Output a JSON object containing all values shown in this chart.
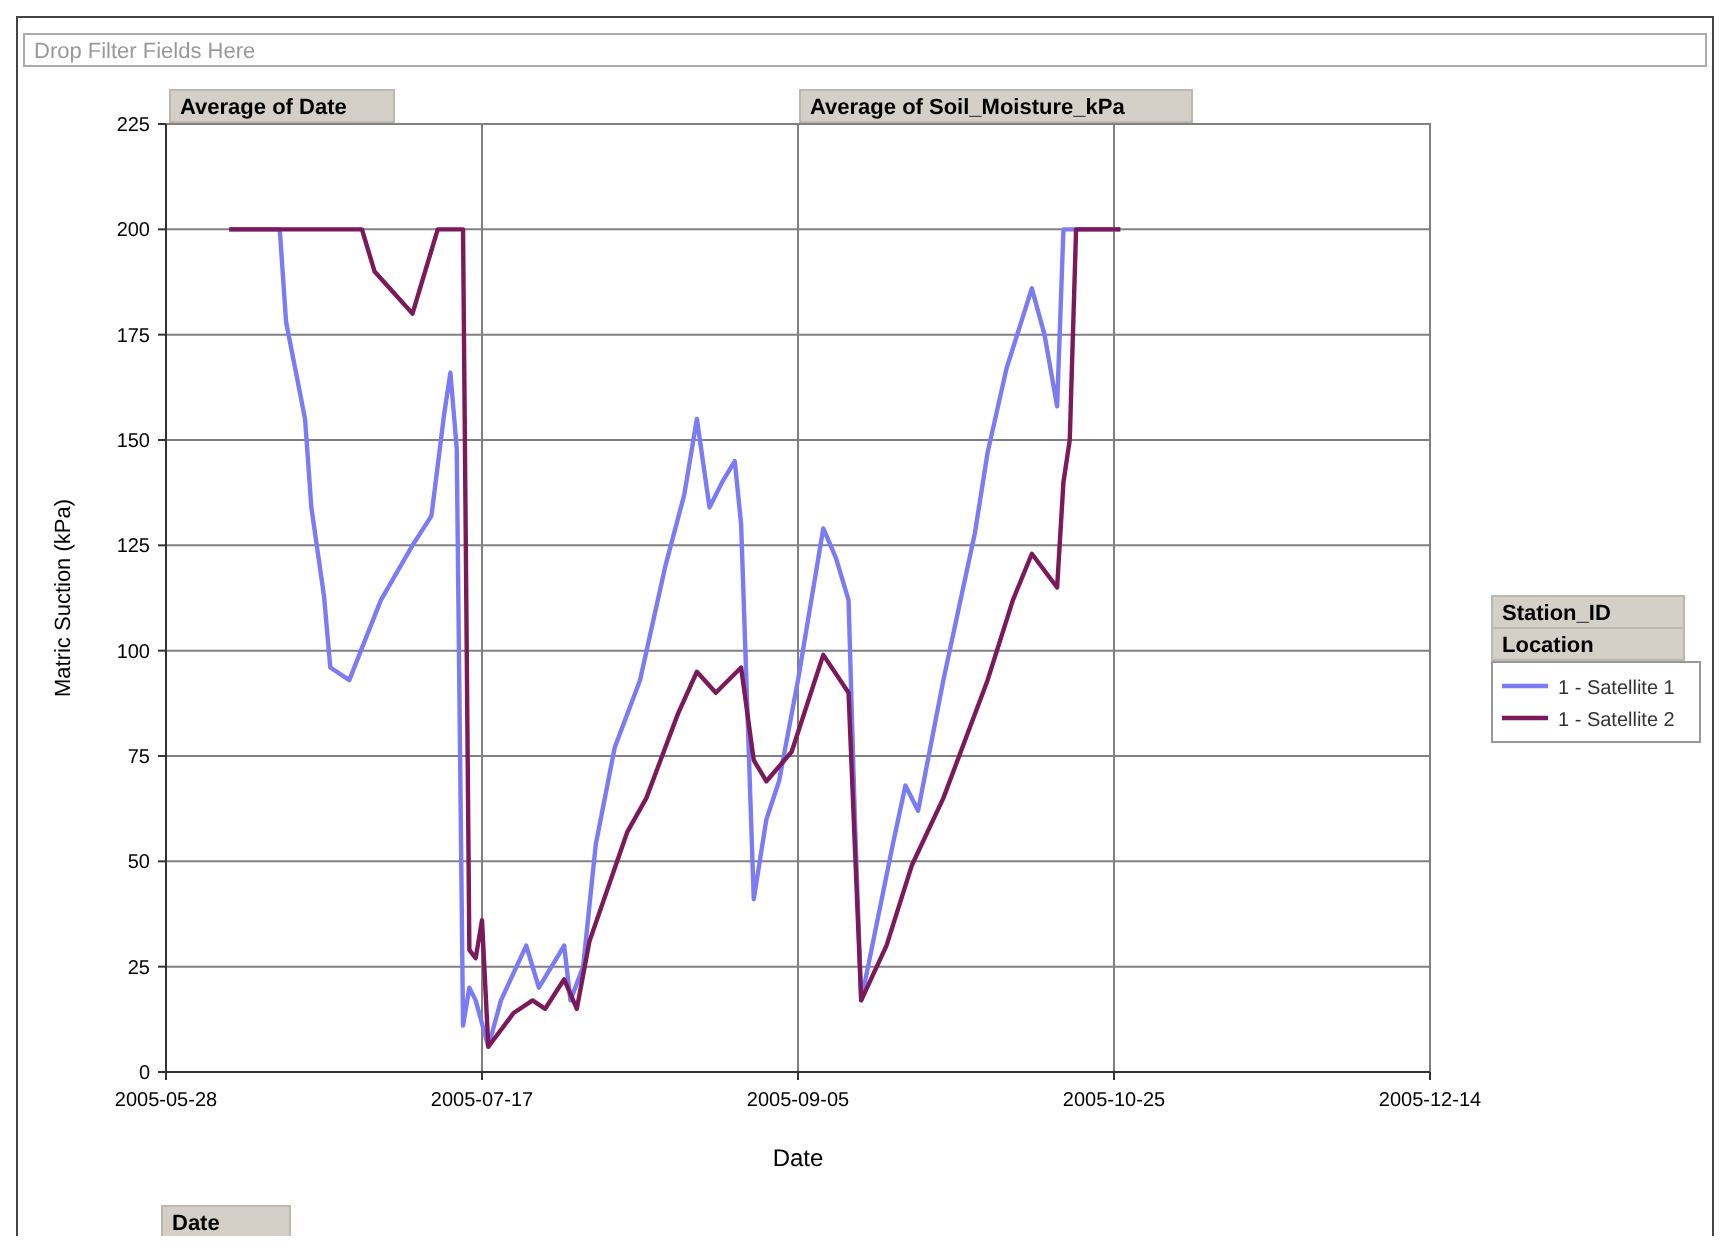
{
  "chart_data": {
    "type": "line",
    "xlabel": "Date",
    "ylabel": "Matric Suction (kPa)",
    "legend_title": "Station_ID",
    "annotations": [
      "Drop Filter Fields Here",
      "Average of Date",
      "Average of Soil_Moisture_kPa",
      "Location",
      "Date"
    ],
    "xlim": [
      "2005-05-28",
      "2005-12-14"
    ],
    "xticks": [
      "2005-05-28",
      "2005-07-17",
      "2005-09-05",
      "2005-10-25",
      "2005-12-14"
    ],
    "ylim": [
      0,
      225
    ],
    "yticks": [
      0,
      25,
      50,
      75,
      100,
      125,
      150,
      175,
      200,
      225
    ],
    "grid": true,
    "legend": "right",
    "line_style": "solid",
    "marker": "none",
    "series": [
      {
        "name": "1 - Satellite 1",
        "color": "#7b7bf5",
        "x": [
          "2005-06-07",
          "2005-06-15",
          "2005-06-16",
          "2005-06-19",
          "2005-06-20",
          "2005-06-22",
          "2005-06-23",
          "2005-06-26",
          "2005-07-01",
          "2005-07-06",
          "2005-07-09",
          "2005-07-11",
          "2005-07-12",
          "2005-07-13",
          "2005-07-14",
          "2005-07-15",
          "2005-07-16",
          "2005-07-18",
          "2005-07-20",
          "2005-07-24",
          "2005-07-26",
          "2005-07-28",
          "2005-07-30",
          "2005-07-31",
          "2005-08-02",
          "2005-08-04",
          "2005-08-07",
          "2005-08-11",
          "2005-08-15",
          "2005-08-18",
          "2005-08-20",
          "2005-08-22",
          "2005-08-24",
          "2005-08-26",
          "2005-08-27",
          "2005-08-29",
          "2005-08-31",
          "2005-09-02",
          "2005-09-05",
          "2005-09-09",
          "2005-09-11",
          "2005-09-13",
          "2005-09-14",
          "2005-09-15",
          "2005-09-20",
          "2005-09-22",
          "2005-09-24",
          "2005-09-28",
          "2005-10-03",
          "2005-10-05",
          "2005-10-08",
          "2005-10-12",
          "2005-10-14",
          "2005-10-16",
          "2005-10-17",
          "2005-10-26"
        ],
        "values": [
          200,
          200,
          178,
          155,
          134,
          113,
          96,
          93,
          112,
          125,
          132,
          156,
          166,
          148,
          11,
          20,
          17,
          6,
          17,
          30,
          20,
          25,
          30,
          17,
          25,
          54,
          77,
          93,
          120,
          137,
          155,
          134,
          140,
          145,
          130,
          41,
          60,
          69,
          93,
          129,
          122,
          112,
          60,
          17,
          54,
          68,
          62,
          93,
          128,
          147,
          167,
          186,
          175,
          158,
          200,
          200
        ]
      },
      {
        "name": "1 - Satellite 2",
        "color": "#7b1a5a",
        "x": [
          "2005-06-07",
          "2005-06-28",
          "2005-06-30",
          "2005-07-03",
          "2005-07-06",
          "2005-07-08",
          "2005-07-10",
          "2005-07-14",
          "2005-07-15",
          "2005-07-16",
          "2005-07-17",
          "2005-07-18",
          "2005-07-22",
          "2005-07-25",
          "2005-07-27",
          "2005-07-30",
          "2005-08-01",
          "2005-08-03",
          "2005-08-09",
          "2005-08-12",
          "2005-08-17",
          "2005-08-20",
          "2005-08-23",
          "2005-08-27",
          "2005-08-29",
          "2005-08-31",
          "2005-09-04",
          "2005-09-09",
          "2005-09-13",
          "2005-09-15",
          "2005-09-19",
          "2005-09-23",
          "2005-09-28",
          "2005-10-05",
          "2005-10-09",
          "2005-10-12",
          "2005-10-16",
          "2005-10-17",
          "2005-10-18",
          "2005-10-19",
          "2005-10-26"
        ],
        "values": [
          200,
          200,
          190,
          185,
          180,
          190,
          200,
          200,
          29,
          27,
          36,
          6,
          14,
          17,
          15,
          22,
          15,
          31,
          57,
          65,
          85,
          95,
          90,
          96,
          74,
          69,
          76,
          99,
          90,
          17,
          30,
          49,
          65,
          93,
          112,
          123,
          115,
          140,
          150,
          200,
          200
        ]
      }
    ]
  }
}
